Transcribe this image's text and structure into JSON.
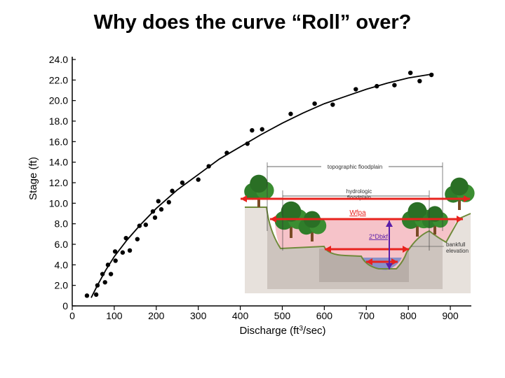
{
  "slide": {
    "title": "Why does the curve “Roll” over?"
  },
  "chart_data": {
    "type": "scatter",
    "xlabel": "Discharge (ft",
    "xlabel_sup": "3",
    "xlabel_suffix": "/sec)",
    "ylabel": "Stage (ft)",
    "xlim": [
      0,
      950
    ],
    "ylim": [
      0,
      24
    ],
    "xticks": [
      0,
      100,
      200,
      300,
      400,
      500,
      600,
      700,
      800,
      900
    ],
    "yticks": [
      0,
      2,
      4,
      6,
      8,
      10,
      12,
      14,
      16,
      18,
      20,
      22,
      24
    ],
    "yticklabels": [
      "0",
      "2.0",
      "4.0",
      "6.0",
      "8.0",
      "10.0",
      "12.0",
      "14.0",
      "16.0",
      "18.0",
      "20.0",
      "22.0",
      "24.0"
    ],
    "points": [
      [
        35,
        1.0
      ],
      [
        57,
        1.1
      ],
      [
        60,
        2.0
      ],
      [
        72,
        3.1
      ],
      [
        78,
        2.3
      ],
      [
        85,
        4.0
      ],
      [
        92,
        3.1
      ],
      [
        102,
        5.3
      ],
      [
        103,
        4.4
      ],
      [
        120,
        5.2
      ],
      [
        128,
        6.6
      ],
      [
        137,
        5.4
      ],
      [
        155,
        6.5
      ],
      [
        160,
        7.8
      ],
      [
        175,
        7.9
      ],
      [
        192,
        9.2
      ],
      [
        197,
        8.6
      ],
      [
        205,
        10.2
      ],
      [
        212,
        9.4
      ],
      [
        230,
        10.1
      ],
      [
        238,
        11.2
      ],
      [
        262,
        12.0
      ],
      [
        300,
        12.3
      ],
      [
        325,
        13.6
      ],
      [
        368,
        14.9
      ],
      [
        417,
        15.8
      ],
      [
        428,
        17.1
      ],
      [
        452,
        17.2
      ],
      [
        520,
        18.7
      ],
      [
        577,
        19.7
      ],
      [
        620,
        19.6
      ],
      [
        675,
        21.1
      ],
      [
        725,
        21.4
      ],
      [
        767,
        21.5
      ],
      [
        805,
        22.7
      ],
      [
        827,
        21.9
      ],
      [
        855,
        22.5
      ]
    ],
    "fit_curve": [
      [
        45,
        0.8
      ],
      [
        60,
        2.0
      ],
      [
        80,
        3.5
      ],
      [
        100,
        4.8
      ],
      [
        130,
        6.4
      ],
      [
        160,
        7.8
      ],
      [
        200,
        9.5
      ],
      [
        250,
        11.3
      ],
      [
        300,
        12.8
      ],
      [
        350,
        14.3
      ],
      [
        400,
        15.5
      ],
      [
        450,
        16.7
      ],
      [
        500,
        17.8
      ],
      [
        550,
        18.8
      ],
      [
        600,
        19.7
      ],
      [
        650,
        20.4
      ],
      [
        700,
        21.1
      ],
      [
        750,
        21.7
      ],
      [
        800,
        22.2
      ],
      [
        860,
        22.6
      ]
    ],
    "inset_labels": {
      "topographic": "topographic floodplain",
      "hydrologic_1": "hydrologic",
      "hydrologic_2": "floodplain",
      "wfpa": "Wfpa",
      "dbkf": "2*Dbkf",
      "bankfull_1": "bankfull",
      "bankfull_2": "elevation"
    },
    "colors": {
      "arrow": "#e8231e",
      "depth_arrow": "#5a1ea8",
      "inundation": "#f4b8c0",
      "water": "#8a90c8",
      "tree": "#2f7d2a"
    }
  }
}
